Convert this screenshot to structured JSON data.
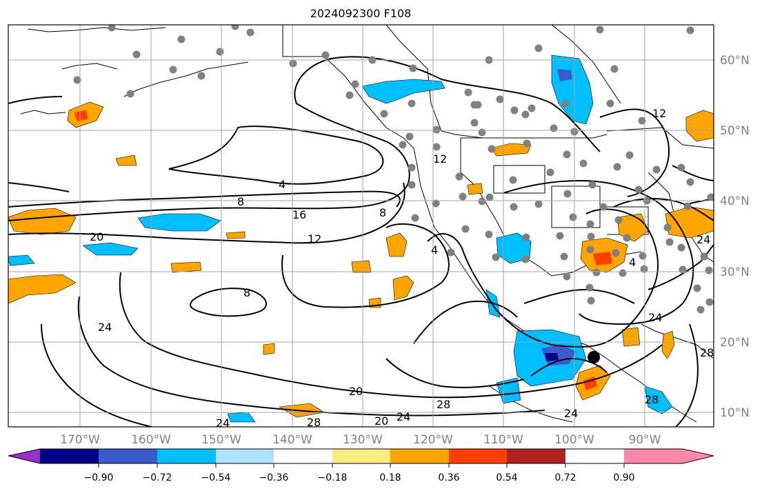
{
  "title": "2024092300 F108",
  "map": {
    "projection": "Mercator",
    "lon_range": [
      -180,
      -80
    ],
    "lat_range": [
      8,
      65
    ],
    "gridlines": true,
    "lon_ticks": [
      -170,
      -160,
      -150,
      -140,
      -130,
      -120,
      -110,
      -100,
      -90
    ],
    "lon_tick_labels": [
      "170°W",
      "160°W",
      "150°W",
      "140°W",
      "130°W",
      "120°W",
      "110°W",
      "100°W",
      "90°W"
    ],
    "lat_ticks": [
      60,
      50,
      40,
      30,
      20,
      10
    ],
    "lat_tick_labels": [
      "60°N",
      "50°N",
      "40°N",
      "30°N",
      "20°N",
      "10°N"
    ],
    "contour_labels": [
      "4",
      "8",
      "16",
      "20",
      "12",
      "8",
      "4",
      "8",
      "24",
      "20",
      "28",
      "20",
      "24",
      "28",
      "24",
      "28",
      "12",
      "24",
      "4",
      "28",
      "24",
      "12",
      "24"
    ]
  },
  "colorbar": {
    "tick_labels": [
      "−0.90",
      "−0.72",
      "−0.54",
      "−0.36",
      "−0.18",
      "0.18",
      "0.36",
      "0.54",
      "0.72",
      "0.90"
    ],
    "colors": [
      "#9932cc",
      "#00008b",
      "#3a5bcc",
      "#00bfff",
      "#b0e2ff",
      "#ffffff",
      "#ffeb80",
      "#ffa500",
      "#ff3e00",
      "#b22222",
      "#ff88aa"
    ],
    "extend": "both"
  },
  "colors": {
    "contour": "#000000",
    "station": "#808080",
    "grid": "#a0a0a0"
  },
  "marker": {
    "name": "storm-center",
    "lon": -96,
    "lat": 17.5
  }
}
